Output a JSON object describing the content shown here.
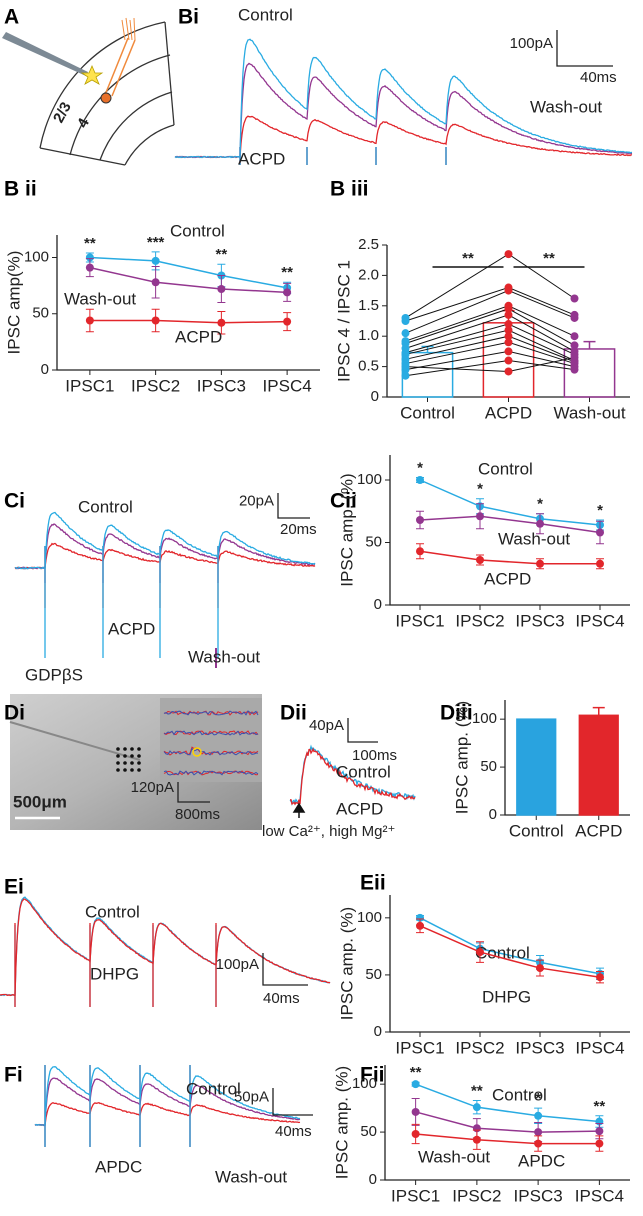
{
  "panels": {
    "A": {
      "label": "A",
      "layers": [
        "2/3",
        "4"
      ]
    },
    "Bi": {
      "label": "Bi",
      "traces": [
        {
          "name": "Control",
          "color": "#29abe2"
        },
        {
          "name": "Wash-out",
          "color": "#93368f"
        },
        {
          "name": "ACPD",
          "color": "#e2262b"
        }
      ],
      "scale_y": "100pA",
      "scale_x": "40ms"
    },
    "Ci": {
      "label": "Ci",
      "traces": [
        {
          "name": "Control",
          "color": "#29abe2"
        },
        {
          "name": "Wash-out",
          "color": "#93368f"
        },
        {
          "name": "ACPD",
          "color": "#e2262b"
        }
      ],
      "scale_y": "20pA",
      "scale_x": "20ms",
      "condition": "GDPβS"
    },
    "Di": {
      "label": "Di",
      "scale_bar": "500μm",
      "scale_y": "120pA",
      "scale_x": "800ms"
    },
    "Dii": {
      "label": "Dii",
      "traces": [
        {
          "name": "Control",
          "color": "#29abe2"
        },
        {
          "name": "ACPD",
          "color": "#e2262b"
        }
      ],
      "scale_y": "40pA",
      "scale_x": "100ms",
      "condition": "low Ca²⁺, high Mg²⁺"
    },
    "Ei": {
      "label": "Ei",
      "traces": [
        {
          "name": "Control",
          "color": "#29abe2"
        },
        {
          "name": "DHPG",
          "color": "#e2262b"
        }
      ],
      "scale_y": "100pA",
      "scale_x": "40ms"
    },
    "Fi": {
      "label": "Fi",
      "traces": [
        {
          "name": "Control",
          "color": "#29abe2"
        },
        {
          "name": "Wash-out",
          "color": "#93368f"
        },
        {
          "name": "APDC",
          "color": "#e2262b"
        }
      ],
      "scale_y": "50pA",
      "scale_x": "40ms"
    }
  },
  "chart_data": [
    {
      "type": "line",
      "title": "B ii",
      "ylabel": "IPSC amp(%)",
      "categories": [
        "IPSC1",
        "IPSC2",
        "IPSC3",
        "IPSC4"
      ],
      "series": [
        {
          "name": "Control",
          "color": "#29abe2",
          "values": [
            100,
            97,
            84,
            73
          ],
          "errors": [
            4,
            8,
            10,
            5
          ]
        },
        {
          "name": "Wash-out",
          "color": "#93368f",
          "values": [
            91,
            78,
            72,
            69
          ],
          "errors": [
            8,
            14,
            12,
            8
          ]
        },
        {
          "name": "ACPD",
          "color": "#e2262b",
          "values": [
            44,
            44,
            42,
            43
          ],
          "errors": [
            10,
            10,
            10,
            8
          ]
        }
      ],
      "annotations": [
        "**",
        "***",
        "**",
        "**"
      ],
      "ylim": [
        0,
        120
      ],
      "yticks": [
        0,
        50,
        100
      ]
    },
    {
      "type": "bar",
      "title": "B iii",
      "ylabel": "IPSC 4 / IPSC 1",
      "categories": [
        "Control",
        "ACPD",
        "Wash-out"
      ],
      "values": [
        0.73,
        1.22,
        0.79
      ],
      "errors": [
        0.1,
        0.2,
        0.12
      ],
      "colors": [
        "#29abe2",
        "#e2262b",
        "#93368f"
      ],
      "filled": false,
      "points": [
        [
          1.3,
          1.25,
          1.05,
          0.92,
          0.88,
          0.8,
          0.73,
          0.7,
          0.62,
          0.55,
          0.45,
          0.35,
          0.5
        ],
        [
          2.35,
          1.8,
          1.75,
          1.5,
          1.45,
          1.35,
          1.2,
          1.1,
          1.0,
          0.9,
          0.75,
          0.6,
          0.42
        ],
        [
          1.62,
          1.35,
          1.3,
          1.0,
          0.85,
          0.75,
          0.7,
          0.6,
          0.58,
          0.55,
          0.5,
          0.45,
          0.65
        ]
      ],
      "annotations": [
        "**",
        "**"
      ],
      "ylim": [
        0,
        2.5
      ],
      "yticks": [
        0,
        0.5,
        {
          "value": 1,
          "label": "1.0"
        },
        1.5,
        {
          "value": 2,
          "label": "2.0"
        },
        2.5
      ]
    },
    {
      "type": "line",
      "title": "Cii",
      "ylabel": "IPSC amp. (%)",
      "categories": [
        "IPSC1",
        "IPSC2",
        "IPSC3",
        "IPSC4"
      ],
      "series": [
        {
          "name": "Control",
          "color": "#29abe2",
          "values": [
            100,
            79,
            69,
            64
          ],
          "errors": [
            2,
            6,
            4,
            4
          ]
        },
        {
          "name": "Wash-out",
          "color": "#93368f",
          "values": [
            68,
            71,
            65,
            58
          ],
          "errors": [
            7,
            10,
            8,
            9
          ]
        },
        {
          "name": "ACPD",
          "color": "#e2262b",
          "values": [
            43,
            36,
            33,
            33
          ],
          "errors": [
            6,
            4,
            4,
            4
          ]
        }
      ],
      "annotations": [
        "*",
        "*",
        "*",
        "*"
      ],
      "ylim": [
        0,
        120
      ],
      "yticks": [
        0,
        50,
        100
      ]
    },
    {
      "type": "bar",
      "title": "Diii",
      "ylabel": "IPSC amp. (%)",
      "categories": [
        "Control",
        "ACPD"
      ],
      "values": [
        100,
        104
      ],
      "errors": [
        null,
        8
      ],
      "colors": [
        "#29a3df",
        "#e2262b"
      ],
      "filled": true,
      "ylim": [
        0,
        120
      ],
      "yticks": [
        0,
        50,
        100
      ]
    },
    {
      "type": "line",
      "title": "Eii",
      "ylabel": "IPSC amp. (%)",
      "categories": [
        "IPSC1",
        "IPSC2",
        "IPSC3",
        "IPSC4"
      ],
      "series": [
        {
          "name": "Control",
          "color": "#29abe2",
          "values": [
            100,
            73,
            61,
            51
          ],
          "errors": [
            2,
            5,
            6,
            5
          ]
        },
        {
          "name": "DHPG",
          "color": "#e2262b",
          "values": [
            93,
            70,
            56,
            48
          ],
          "errors": [
            6,
            9,
            7,
            5
          ]
        }
      ],
      "ylim": [
        0,
        120
      ],
      "yticks": [
        0,
        50,
        100
      ]
    },
    {
      "type": "line",
      "title": "Fii",
      "ylabel": "IPSC amp. (%)",
      "categories": [
        "IPSC1",
        "IPSC2",
        "IPSC3",
        "IPSC4"
      ],
      "series": [
        {
          "name": "Control",
          "color": "#29abe2",
          "values": [
            100,
            76,
            67,
            61
          ],
          "errors": [
            2,
            7,
            8,
            6
          ]
        },
        {
          "name": "Wash-out",
          "color": "#93368f",
          "values": [
            71,
            54,
            50,
            51
          ],
          "errors": [
            14,
            10,
            10,
            8
          ]
        },
        {
          "name": "APDC",
          "color": "#e2262b",
          "values": [
            48,
            42,
            38,
            38
          ],
          "errors": [
            10,
            10,
            8,
            8
          ]
        }
      ],
      "annotations": [
        "**",
        "**",
        "*",
        "**"
      ],
      "ylim": [
        0,
        120
      ],
      "yticks": [
        0,
        50,
        100
      ]
    }
  ]
}
